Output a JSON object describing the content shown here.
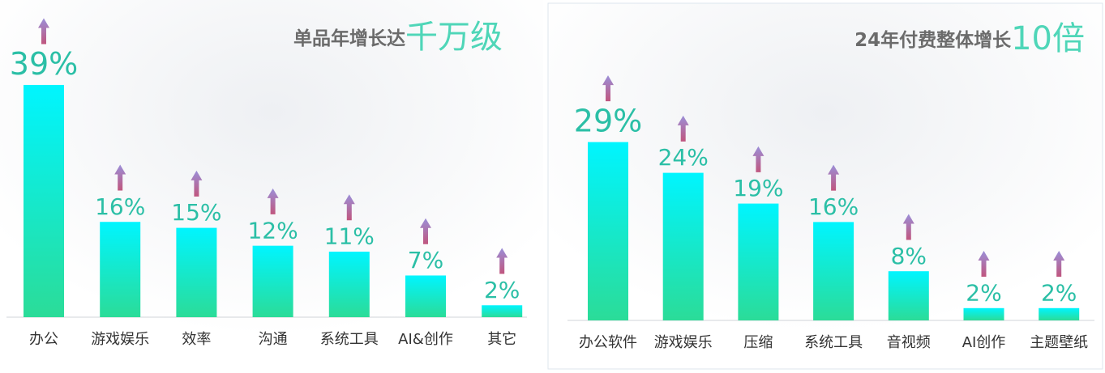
{
  "chart_data": [
    {
      "type": "bar",
      "title": "单品年增长达",
      "title_highlight": "千万级",
      "categories": [
        "办公",
        "游戏娱乐",
        "效率",
        "沟通",
        "系统工具",
        "AI&创作",
        "其它"
      ],
      "values": [
        39,
        16,
        15,
        12,
        11,
        7,
        2
      ],
      "value_labels": [
        "39%",
        "16%",
        "15%",
        "12%",
        "11%",
        "7%",
        "2%"
      ],
      "color": [
        "#00f5ff",
        "#2bdc98"
      ]
    },
    {
      "type": "bar",
      "title": "24年付费整体增长",
      "title_highlight": "10倍",
      "categories": [
        "办公软件",
        "游戏娱乐",
        "压缩",
        "系统工具",
        "音视频",
        "AI创作",
        "主题壁纸"
      ],
      "values": [
        29,
        24,
        19,
        16,
        8,
        2,
        2
      ],
      "value_labels": [
        "29%",
        "24%",
        "19%",
        "16%",
        "8%",
        "2%",
        "2%"
      ],
      "color": [
        "#00f5ff",
        "#2bdc98"
      ]
    }
  ]
}
